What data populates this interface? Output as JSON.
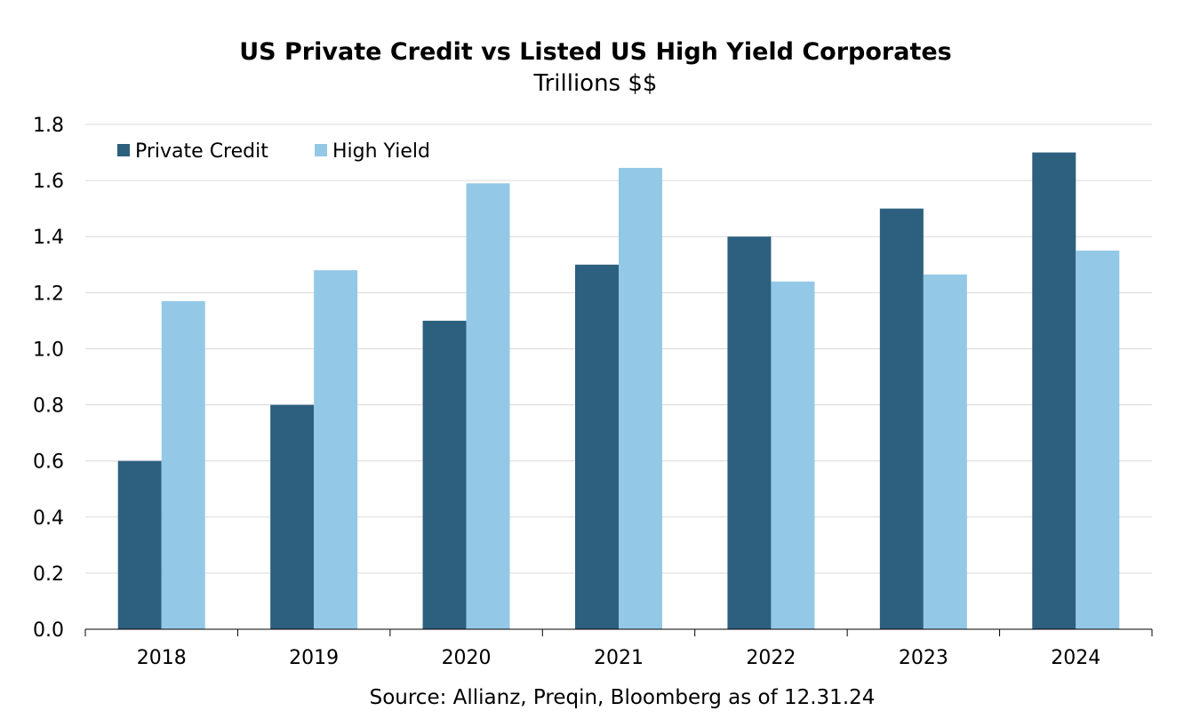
{
  "chart_data": {
    "type": "bar",
    "title": "US Private Credit vs Listed US High Yield Corporates",
    "subtitle": "Trillions $$",
    "xlabel": "",
    "ylabel": "",
    "categories": [
      "2018",
      "2019",
      "2020",
      "2021",
      "2022",
      "2023",
      "2024"
    ],
    "series": [
      {
        "name": "Private Credit",
        "color": "#2d5f7f",
        "values": [
          0.6,
          0.8,
          1.1,
          1.3,
          1.4,
          1.5,
          1.7
        ]
      },
      {
        "name": "High Yield",
        "color": "#94c8e7",
        "values": [
          1.17,
          1.28,
          1.59,
          1.645,
          1.24,
          1.265,
          1.35
        ]
      }
    ],
    "ylim": [
      0,
      1.8
    ],
    "yticks": [
      "0.0",
      "0.2",
      "0.4",
      "0.6",
      "0.8",
      "1.0",
      "1.2",
      "1.4",
      "1.6",
      "1.8"
    ],
    "grid": true,
    "legend_position": "top-left",
    "source": "Source: Allianz, Preqin, Bloomberg as of 12.31.24"
  }
}
